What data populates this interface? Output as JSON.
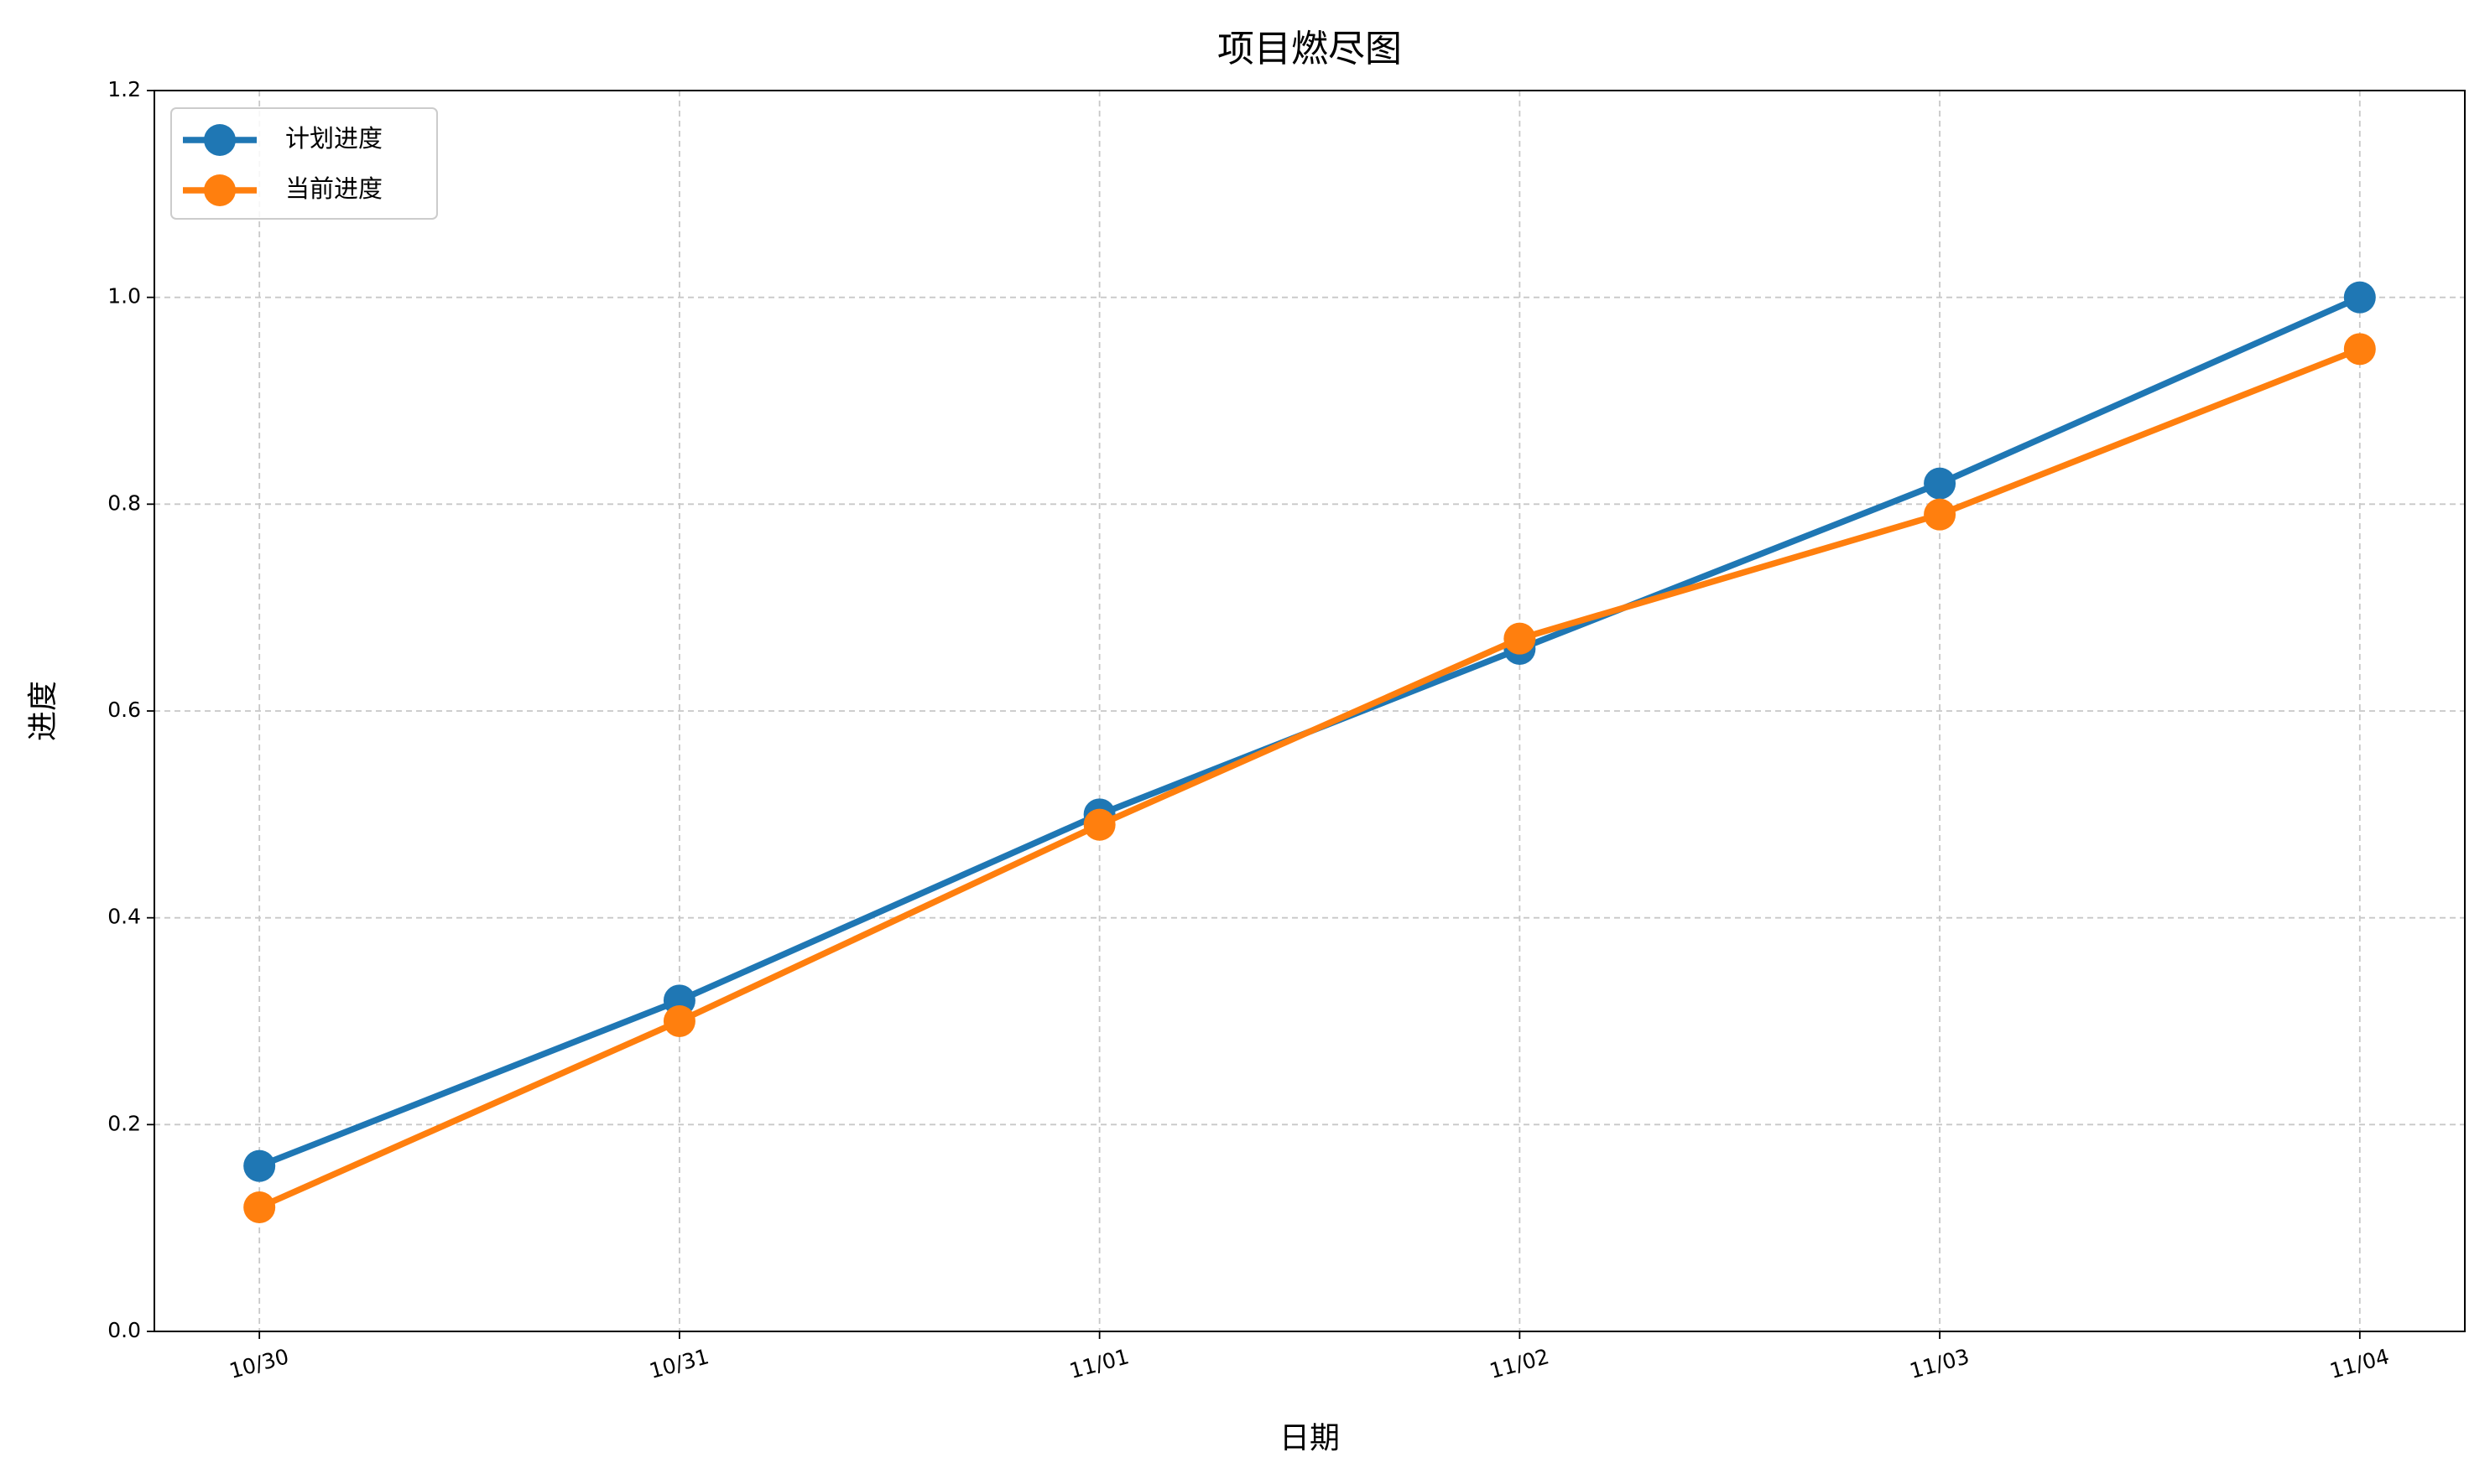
{
  "chart_data": {
    "type": "line",
    "title": "项目燃尽图",
    "x_label": "日期",
    "y_label": "进度",
    "categories": [
      "10/30",
      "10/31",
      "11/01",
      "11/02",
      "11/03",
      "11/04"
    ],
    "series": [
      {
        "name": "计划进度",
        "color": "#1f77b4",
        "values": [
          0.16,
          0.32,
          0.5,
          0.66,
          0.82,
          1.0
        ]
      },
      {
        "name": "当前进度",
        "color": "#ff7f0e",
        "values": [
          0.12,
          0.3,
          0.49,
          0.67,
          0.79,
          0.95
        ]
      }
    ],
    "ylim": [
      0,
      1.2
    ],
    "yticks": [
      {
        "value": 0,
        "label": "0.0"
      },
      0.2,
      0.4,
      0.6,
      0.8,
      {
        "value": 1,
        "label": "1.0"
      },
      1.2
    ],
    "grid": true,
    "legend": "upper left"
  }
}
